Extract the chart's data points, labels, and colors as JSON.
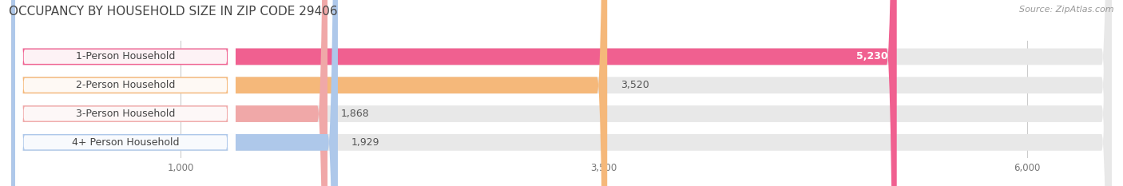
{
  "title": "OCCUPANCY BY HOUSEHOLD SIZE IN ZIP CODE 29406",
  "source": "Source: ZipAtlas.com",
  "categories": [
    "1-Person Household",
    "2-Person Household",
    "3-Person Household",
    "4+ Person Household"
  ],
  "values": [
    5230,
    3520,
    1868,
    1929
  ],
  "bar_colors": [
    "#f06090",
    "#f5b87a",
    "#f0a8a8",
    "#aec8ea"
  ],
  "bar_bg_color": "#e8e8e8",
  "xlim": [
    0,
    6500
  ],
  "xticks": [
    1000,
    3500,
    6000
  ],
  "xtick_labels": [
    "1,000",
    "3,500",
    "6,000"
  ],
  "title_fontsize": 11,
  "source_fontsize": 8,
  "bar_label_fontsize": 9,
  "category_fontsize": 9,
  "background_color": "#ffffff"
}
